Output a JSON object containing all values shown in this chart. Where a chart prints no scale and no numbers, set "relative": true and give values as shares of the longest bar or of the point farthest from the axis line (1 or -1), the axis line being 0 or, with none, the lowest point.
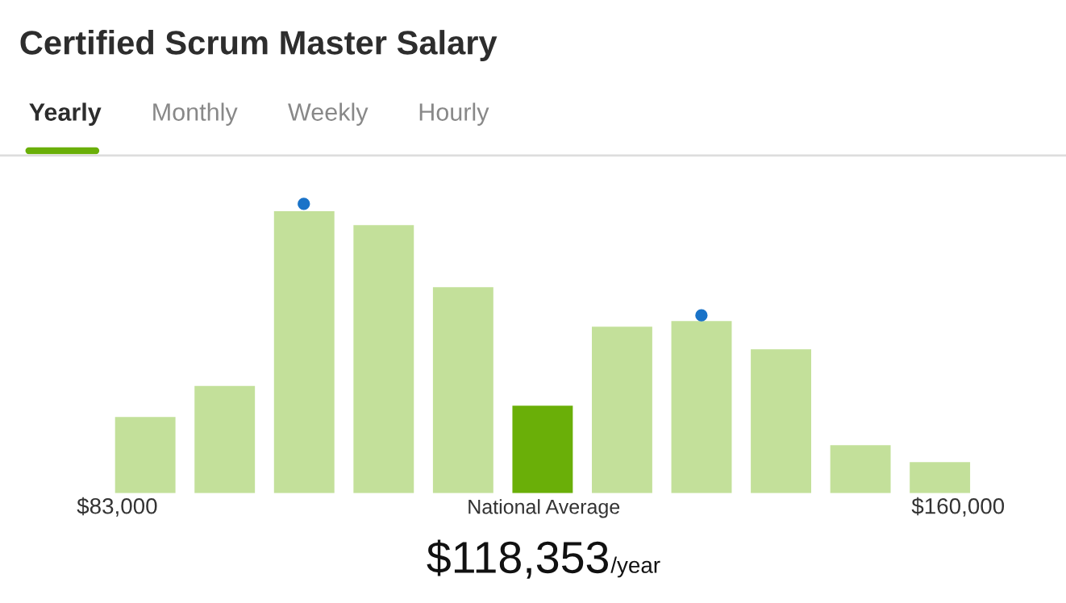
{
  "chart_data": {
    "type": "bar",
    "title": "Certified Scrum Master Salary",
    "relative": true,
    "categories": [
      null,
      null,
      null,
      null,
      null,
      null,
      null,
      null,
      null,
      null,
      null
    ],
    "series": [
      {
        "colors": [
          "#c3e09a",
          "#c3e09a",
          "#c3e09a",
          "#c3e09a",
          "#c3e09a",
          "#6aaf08",
          "#c3e09a",
          "#c3e09a",
          "#c3e09a",
          "#c3e09a",
          "#c3e09a"
        ],
        "values": [
          0.27,
          0.38,
          1,
          0.95,
          0.73,
          0.31,
          0.59,
          0.61,
          0.51,
          0.17,
          0.11
        ]
      }
    ],
    "annotations": [
      "Yearly",
      "Monthly",
      "Weekly",
      "Hourly",
      "$83,000",
      "National Average",
      "$160,000",
      "$118,353",
      "/year"
    ],
    "grid": false,
    "legend": false
  }
}
